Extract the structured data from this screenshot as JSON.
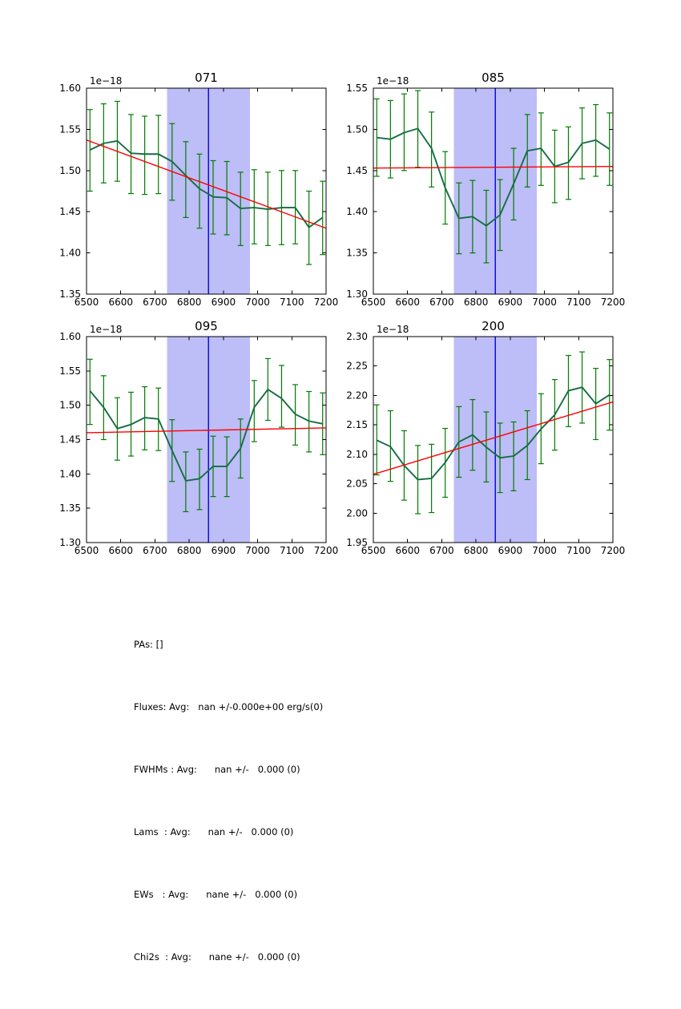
{
  "colors": {
    "data_line": "#156d43",
    "error_bar": "#007c00",
    "trend_line": "#ff0000",
    "band_fill": "#bdbdf7",
    "marker_line": "#1010dd",
    "frame": "#000000",
    "text": "#000000",
    "background": "#ffffff"
  },
  "chart_data": [
    {
      "type": "line",
      "title": "071",
      "offset_label": "1e−18",
      "xlabel": "",
      "ylabel": "",
      "xlim": [
        6500,
        7200
      ],
      "ylim": [
        1.35,
        1.6
      ],
      "xticks": [
        6500,
        6600,
        6700,
        6800,
        6900,
        7000,
        7100,
        7200
      ],
      "yticks": [
        1.35,
        1.4,
        1.45,
        1.5,
        1.55,
        1.6
      ],
      "grid": false,
      "legend": "none",
      "band_x": [
        6735,
        6978
      ],
      "vline_x": 6857,
      "x": [
        6510,
        6550,
        6590,
        6630,
        6670,
        6710,
        6750,
        6790,
        6830,
        6870,
        6910,
        6950,
        6990,
        7030,
        7070,
        7110,
        7150,
        7190
      ],
      "y": [
        1.525,
        1.533,
        1.536,
        1.521,
        1.52,
        1.52,
        1.511,
        1.494,
        1.478,
        1.468,
        1.467,
        1.454,
        1.455,
        1.453,
        1.455,
        1.455,
        1.431,
        1.443
      ],
      "yerr_low": [
        1.475,
        1.485,
        1.487,
        1.472,
        1.471,
        1.472,
        1.464,
        1.443,
        1.43,
        1.423,
        1.422,
        1.409,
        1.411,
        1.409,
        1.41,
        1.411,
        1.386,
        1.398
      ],
      "yerr_high": [
        1.574,
        1.581,
        1.584,
        1.568,
        1.566,
        1.567,
        1.557,
        1.535,
        1.52,
        1.512,
        1.511,
        1.498,
        1.501,
        1.498,
        1.5,
        1.5,
        1.475,
        1.487
      ],
      "trend": {
        "x0": 6500,
        "y0": 1.537,
        "x1": 7200,
        "y1": 1.43
      }
    },
    {
      "type": "line",
      "title": "085",
      "offset_label": "1e−18",
      "xlabel": "",
      "ylabel": "",
      "xlim": [
        6500,
        7200
      ],
      "ylim": [
        1.3,
        1.55
      ],
      "xticks": [
        6500,
        6600,
        6700,
        6800,
        6900,
        7000,
        7100,
        7200
      ],
      "yticks": [
        1.3,
        1.35,
        1.4,
        1.45,
        1.5,
        1.55
      ],
      "grid": false,
      "legend": "none",
      "band_x": [
        6735,
        6978
      ],
      "vline_x": 6857,
      "x": [
        6510,
        6550,
        6590,
        6630,
        6670,
        6710,
        6750,
        6790,
        6830,
        6870,
        6910,
        6950,
        6990,
        7030,
        7070,
        7110,
        7150,
        7190
      ],
      "y": [
        1.49,
        1.488,
        1.496,
        1.501,
        1.477,
        1.429,
        1.392,
        1.394,
        1.383,
        1.396,
        1.434,
        1.474,
        1.477,
        1.455,
        1.46,
        1.483,
        1.487,
        1.476
      ],
      "yerr_low": [
        1.443,
        1.441,
        1.45,
        1.454,
        1.43,
        1.385,
        1.349,
        1.35,
        1.338,
        1.353,
        1.39,
        1.43,
        1.432,
        1.411,
        1.415,
        1.44,
        1.443,
        1.432
      ],
      "yerr_high": [
        1.537,
        1.535,
        1.543,
        1.547,
        1.521,
        1.473,
        1.435,
        1.438,
        1.426,
        1.439,
        1.477,
        1.518,
        1.52,
        1.499,
        1.503,
        1.526,
        1.53,
        1.52
      ],
      "trend": {
        "x0": 6500,
        "y0": 1.453,
        "x1": 7200,
        "y1": 1.455
      }
    },
    {
      "type": "line",
      "title": "095",
      "offset_label": "1e−18",
      "xlabel": "",
      "ylabel": "",
      "xlim": [
        6500,
        7200
      ],
      "ylim": [
        1.3,
        1.6
      ],
      "xticks": [
        6500,
        6600,
        6700,
        6800,
        6900,
        7000,
        7100,
        7200
      ],
      "yticks": [
        1.3,
        1.35,
        1.4,
        1.45,
        1.5,
        1.55,
        1.6
      ],
      "grid": false,
      "legend": "none",
      "band_x": [
        6735,
        6978
      ],
      "vline_x": 6857,
      "x": [
        6510,
        6550,
        6590,
        6630,
        6670,
        6710,
        6750,
        6790,
        6830,
        6870,
        6910,
        6950,
        6990,
        7030,
        7070,
        7110,
        7150,
        7190
      ],
      "y": [
        1.521,
        1.497,
        1.466,
        1.472,
        1.482,
        1.48,
        1.434,
        1.39,
        1.393,
        1.411,
        1.411,
        1.437,
        1.497,
        1.523,
        1.51,
        1.487,
        1.477,
        1.473
      ],
      "yerr_low": [
        1.472,
        1.45,
        1.42,
        1.426,
        1.435,
        1.434,
        1.389,
        1.345,
        1.348,
        1.367,
        1.367,
        1.394,
        1.447,
        1.478,
        1.468,
        1.442,
        1.432,
        1.428
      ],
      "yerr_high": [
        1.567,
        1.543,
        1.511,
        1.519,
        1.527,
        1.525,
        1.479,
        1.432,
        1.436,
        1.455,
        1.454,
        1.48,
        1.536,
        1.568,
        1.558,
        1.53,
        1.52,
        1.518
      ],
      "trend": {
        "x0": 6500,
        "y0": 1.46,
        "x1": 7200,
        "y1": 1.467
      }
    },
    {
      "type": "line",
      "title": "200",
      "offset_label": "1e−18",
      "xlabel": "",
      "ylabel": "",
      "xlim": [
        6500,
        7200
      ],
      "ylim": [
        1.95,
        2.3
      ],
      "xticks": [
        6500,
        6600,
        6700,
        6800,
        6900,
        7000,
        7100,
        7200
      ],
      "yticks": [
        1.95,
        2.0,
        2.05,
        2.1,
        2.15,
        2.2,
        2.25,
        2.3
      ],
      "grid": false,
      "legend": "none",
      "band_x": [
        6735,
        6978
      ],
      "vline_x": 6857,
      "x": [
        6510,
        6550,
        6590,
        6630,
        6670,
        6710,
        6750,
        6790,
        6830,
        6870,
        6910,
        6950,
        6990,
        7030,
        7070,
        7110,
        7150,
        7190
      ],
      "y": [
        2.124,
        2.113,
        2.081,
        2.057,
        2.059,
        2.086,
        2.121,
        2.133,
        2.112,
        2.094,
        2.097,
        2.115,
        2.143,
        2.167,
        2.208,
        2.214,
        2.186,
        2.201
      ],
      "yerr_low": [
        2.065,
        2.054,
        2.022,
        1.999,
        2.001,
        2.027,
        2.061,
        2.073,
        2.053,
        2.035,
        2.038,
        2.057,
        2.084,
        2.107,
        2.147,
        2.153,
        2.125,
        2.141
      ],
      "yerr_high": [
        2.184,
        2.174,
        2.14,
        2.115,
        2.117,
        2.144,
        2.181,
        2.193,
        2.172,
        2.153,
        2.155,
        2.174,
        2.203,
        2.227,
        2.268,
        2.274,
        2.246,
        2.261
      ],
      "trend": {
        "x0": 6500,
        "y0": 2.066,
        "x1": 7200,
        "y1": 2.189
      }
    }
  ],
  "annotations": {
    "lines": [
      "PAs: []",
      "Fluxes: Avg:   nan +/-0.000e+00 erg/s(0)",
      "FWHMs : Avg:      nan +/-   0.000 (0)",
      "Lams  : Avg:      nan +/-   0.000 (0)",
      "EWs   : Avg:      nane +/-   0.000 (0)",
      "Chi2s  : Avg:      nane +/-   0.000 (0)"
    ]
  }
}
